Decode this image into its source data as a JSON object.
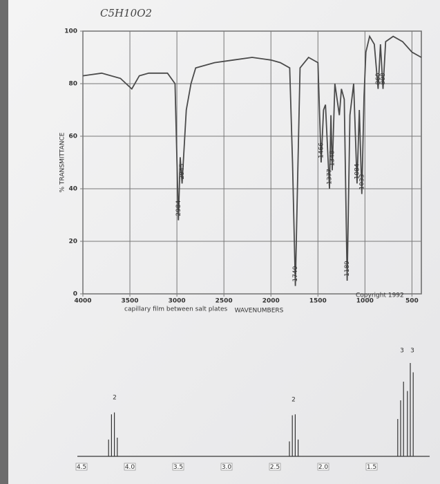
{
  "handwritten_formula": "C5H10O2",
  "chart_data": [
    {
      "type": "line",
      "y_label": "% TRANSMITTANCE",
      "x_label": "WAVENUMBERS",
      "annotations": [
        "capillary film between salt plates",
        "Copyright 1992"
      ],
      "xlim": [
        4000,
        400
      ],
      "ylim": [
        0,
        100
      ],
      "xticks": [
        4000,
        3500,
        3000,
        2500,
        2000,
        1500,
        1000,
        500
      ],
      "yticks": [
        0,
        20,
        40,
        60,
        80,
        100
      ],
      "grid": true,
      "color": "#4a4a4a",
      "x": [
        4000,
        3800,
        3600,
        3480,
        3400,
        3300,
        3100,
        3020,
        2984,
        2965,
        2945,
        2900,
        2850,
        2800,
        2600,
        2400,
        2200,
        2000,
        1900,
        1800,
        1770,
        1740,
        1715,
        1690,
        1600,
        1500,
        1466,
        1440,
        1420,
        1377,
        1362,
        1348,
        1320,
        1272,
        1250,
        1220,
        1189,
        1160,
        1120,
        1084,
        1060,
        1033,
        1010,
        990,
        950,
        900,
        860,
        835,
        808,
        780,
        700,
        600,
        500,
        400
      ],
      "values": [
        83,
        84,
        82,
        78,
        83,
        84,
        84,
        80,
        28,
        52,
        42,
        70,
        80,
        86,
        88,
        89,
        90,
        89,
        88,
        86,
        50,
        3,
        45,
        86,
        90,
        88,
        50,
        70,
        72,
        40,
        68,
        47,
        80,
        68,
        78,
        74,
        5,
        68,
        80,
        42,
        70,
        38,
        75,
        92,
        98,
        95,
        78,
        95,
        78,
        96,
        98,
        96,
        92,
        90
      ],
      "peak_labels": [
        2945,
        2984,
        1740,
        1466,
        1377,
        1348,
        1189,
        1084,
        1033,
        860,
        808
      ]
    },
    {
      "type": "stick",
      "xlim": [
        4.5,
        0.9
      ],
      "ylim": [
        0,
        100
      ],
      "xticks": [
        4.5,
        {
          "value": 4,
          "label": "4.0"
        },
        3.5,
        {
          "value": 3,
          "label": "3.0"
        },
        2.5,
        {
          "value": 2,
          "label": "2.0"
        },
        1.5
      ],
      "color": "#333",
      "x": [
        4.22,
        4.19,
        4.16,
        4.13,
        2.35,
        2.32,
        2.29,
        2.26,
        1.23,
        1.2,
        1.17,
        1.13,
        1.1,
        1.07
      ],
      "values": [
        18,
        45,
        47,
        20,
        16,
        44,
        45,
        18,
        40,
        60,
        80,
        70,
        100,
        90
      ],
      "integrals": [
        2,
        2,
        3,
        3
      ]
    }
  ]
}
